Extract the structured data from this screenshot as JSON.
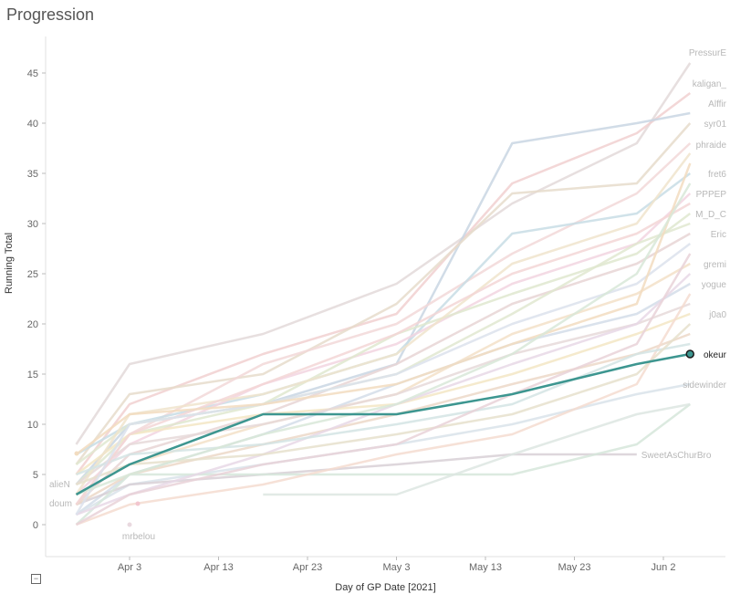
{
  "title": "Progression",
  "chart_data": {
    "type": "line",
    "title": "Progression",
    "xlabel": "Day of GP Date [2021]",
    "ylabel": "Running Total",
    "x_ticks": [
      "Apr 3",
      "Apr 13",
      "Apr 23",
      "May 3",
      "May 13",
      "May 23",
      "Jun 2"
    ],
    "y_ticks": [
      0,
      5,
      10,
      15,
      20,
      25,
      30,
      35,
      40,
      45
    ],
    "ylim": [
      -3,
      47
    ],
    "xlim": [
      "2021-03-27",
      "2021-06-06"
    ],
    "grid": false,
    "highlight": {
      "name": "okeur",
      "color": "#3d9690",
      "points": [
        {
          "x": "2021-03-28",
          "y": 3
        },
        {
          "x": "2021-04-03",
          "y": 6
        },
        {
          "x": "2021-04-18",
          "y": 11
        },
        {
          "x": "2021-05-03",
          "y": 11
        },
        {
          "x": "2021-05-16",
          "y": 13
        },
        {
          "x": "2021-05-30",
          "y": 16
        },
        {
          "x": "2021-06-05",
          "y": 17
        }
      ]
    },
    "series": [
      {
        "name": "PressurE",
        "color": "#e3d9d9",
        "points": [
          {
            "x": "2021-03-28",
            "y": 8
          },
          {
            "x": "2021-04-03",
            "y": 16
          },
          {
            "x": "2021-04-18",
            "y": 19
          },
          {
            "x": "2021-05-03",
            "y": 24
          },
          {
            "x": "2021-05-16",
            "y": 32
          },
          {
            "x": "2021-05-30",
            "y": 38
          },
          {
            "x": "2021-06-05",
            "y": 46
          }
        ]
      },
      {
        "name": "kaligan_",
        "color": "#f1d0d0",
        "points": [
          {
            "x": "2021-03-28",
            "y": 5
          },
          {
            "x": "2021-04-03",
            "y": 12
          },
          {
            "x": "2021-04-18",
            "y": 17
          },
          {
            "x": "2021-05-03",
            "y": 21
          },
          {
            "x": "2021-05-16",
            "y": 34
          },
          {
            "x": "2021-05-30",
            "y": 39
          },
          {
            "x": "2021-06-05",
            "y": 43
          }
        ]
      },
      {
        "name": "Alffir",
        "color": "#c9d6e3",
        "points": [
          {
            "x": "2021-03-28",
            "y": 4
          },
          {
            "x": "2021-04-03",
            "y": 10
          },
          {
            "x": "2021-04-18",
            "y": 12
          },
          {
            "x": "2021-05-03",
            "y": 16
          },
          {
            "x": "2021-05-16",
            "y": 38
          },
          {
            "x": "2021-05-30",
            "y": 40
          },
          {
            "x": "2021-06-05",
            "y": 41
          }
        ]
      },
      {
        "name": "syr01",
        "color": "#e6dccb",
        "points": [
          {
            "x": "2021-03-28",
            "y": 6
          },
          {
            "x": "2021-04-03",
            "y": 13
          },
          {
            "x": "2021-04-18",
            "y": 15
          },
          {
            "x": "2021-05-03",
            "y": 22
          },
          {
            "x": "2021-05-16",
            "y": 33
          },
          {
            "x": "2021-05-30",
            "y": 34
          },
          {
            "x": "2021-06-05",
            "y": 40
          }
        ]
      },
      {
        "name": "phraide",
        "color": "#f2d8d8",
        "points": [
          {
            "x": "2021-03-28",
            "y": 2
          },
          {
            "x": "2021-04-03",
            "y": 9
          },
          {
            "x": "2021-04-18",
            "y": 16
          },
          {
            "x": "2021-05-03",
            "y": 20
          },
          {
            "x": "2021-05-16",
            "y": 27
          },
          {
            "x": "2021-05-30",
            "y": 33
          },
          {
            "x": "2021-06-05",
            "y": 38
          }
        ]
      },
      {
        "name": "fret6",
        "color": "#c8dde5",
        "points": [
          {
            "x": "2021-03-28",
            "y": 7
          },
          {
            "x": "2021-04-03",
            "y": 10
          },
          {
            "x": "2021-04-18",
            "y": 13
          },
          {
            "x": "2021-05-03",
            "y": 17
          },
          {
            "x": "2021-05-16",
            "y": 29
          },
          {
            "x": "2021-05-30",
            "y": 31
          },
          {
            "x": "2021-06-05",
            "y": 35
          }
        ]
      },
      {
        "name": "PPPEP",
        "color": "#f2d5e0",
        "points": [
          {
            "x": "2021-03-28",
            "y": 3
          },
          {
            "x": "2021-04-03",
            "y": 8
          },
          {
            "x": "2021-04-18",
            "y": 14
          },
          {
            "x": "2021-05-03",
            "y": 18
          },
          {
            "x": "2021-05-16",
            "y": 24
          },
          {
            "x": "2021-05-30",
            "y": 28
          },
          {
            "x": "2021-06-05",
            "y": 33
          }
        ]
      },
      {
        "name": "M_D_C",
        "color": "#dfe8cf",
        "points": [
          {
            "x": "2021-03-28",
            "y": 4
          },
          {
            "x": "2021-04-03",
            "y": 9
          },
          {
            "x": "2021-04-18",
            "y": 12
          },
          {
            "x": "2021-05-03",
            "y": 19
          },
          {
            "x": "2021-05-16",
            "y": 23
          },
          {
            "x": "2021-05-30",
            "y": 27
          },
          {
            "x": "2021-06-05",
            "y": 31
          }
        ]
      },
      {
        "name": "Eric",
        "color": "#e8d5d5",
        "points": [
          {
            "x": "2021-03-28",
            "y": 2
          },
          {
            "x": "2021-04-03",
            "y": 7
          },
          {
            "x": "2021-04-18",
            "y": 11
          },
          {
            "x": "2021-05-03",
            "y": 16
          },
          {
            "x": "2021-05-16",
            "y": 22
          },
          {
            "x": "2021-05-30",
            "y": 26
          },
          {
            "x": "2021-06-05",
            "y": 29
          }
        ]
      },
      {
        "name": "gremi",
        "color": "#f3e0c8",
        "points": [
          {
            "x": "2021-03-28",
            "y": 3
          },
          {
            "x": "2021-04-03",
            "y": 6
          },
          {
            "x": "2021-04-18",
            "y": 10
          },
          {
            "x": "2021-05-03",
            "y": 13
          },
          {
            "x": "2021-05-16",
            "y": 19
          },
          {
            "x": "2021-05-30",
            "y": 23
          },
          {
            "x": "2021-06-05",
            "y": 26
          }
        ]
      },
      {
        "name": "yogue",
        "color": "#d4dde9",
        "points": [
          {
            "x": "2021-03-28",
            "y": 1
          },
          {
            "x": "2021-04-03",
            "y": 5
          },
          {
            "x": "2021-04-18",
            "y": 9
          },
          {
            "x": "2021-05-03",
            "y": 14
          },
          {
            "x": "2021-05-16",
            "y": 18
          },
          {
            "x": "2021-05-30",
            "y": 21
          },
          {
            "x": "2021-06-05",
            "y": 24
          }
        ]
      },
      {
        "name": "j0a0",
        "color": "#f3e6c4",
        "points": [
          {
            "x": "2021-03-28",
            "y": 5
          },
          {
            "x": "2021-04-03",
            "y": 9
          },
          {
            "x": "2021-04-18",
            "y": 11
          },
          {
            "x": "2021-05-03",
            "y": 12
          },
          {
            "x": "2021-05-16",
            "y": 15
          },
          {
            "x": "2021-05-30",
            "y": 19
          },
          {
            "x": "2021-06-05",
            "y": 21
          }
        ]
      },
      {
        "name": "sidewinder",
        "color": "#d9e3ea",
        "points": [
          {
            "x": "2021-03-28",
            "y": 1
          },
          {
            "x": "2021-04-03",
            "y": 4
          },
          {
            "x": "2021-04-18",
            "y": 6
          },
          {
            "x": "2021-05-03",
            "y": 8
          },
          {
            "x": "2021-05-16",
            "y": 10
          },
          {
            "x": "2021-05-30",
            "y": 13
          },
          {
            "x": "2021-06-05",
            "y": 14
          }
        ]
      },
      {
        "name": "SweetAsChurBro",
        "color": "#d8d0d6",
        "points": [
          {
            "x": "2021-03-28",
            "y": 2
          },
          {
            "x": "2021-04-03",
            "y": 4
          },
          {
            "x": "2021-04-18",
            "y": 5
          },
          {
            "x": "2021-05-03",
            "y": 6
          },
          {
            "x": "2021-05-16",
            "y": 7
          },
          {
            "x": "2021-05-30",
            "y": 7
          }
        ]
      },
      {
        "name": "alieN",
        "color": "#e6d9d9",
        "points": [
          {
            "x": "2021-03-28",
            "y": 4
          },
          {
            "x": "2021-04-03",
            "y": 8
          },
          {
            "x": "2021-04-18",
            "y": 10
          },
          {
            "x": "2021-05-03",
            "y": 13
          },
          {
            "x": "2021-05-16",
            "y": 17
          },
          {
            "x": "2021-05-30",
            "y": 20
          },
          {
            "x": "2021-06-05",
            "y": 22
          }
        ]
      },
      {
        "name": "doum",
        "color": "#ecd8c8",
        "points": [
          {
            "x": "2021-03-28",
            "y": 2
          },
          {
            "x": "2021-04-03",
            "y": 5
          },
          {
            "x": "2021-04-18",
            "y": 8
          },
          {
            "x": "2021-05-03",
            "y": 11
          },
          {
            "x": "2021-05-16",
            "y": 14
          },
          {
            "x": "2021-05-30",
            "y": 17
          },
          {
            "x": "2021-06-05",
            "y": 19
          }
        ]
      },
      {
        "name": "mrbelou",
        "color": "#e9d9df",
        "points": [
          {
            "x": "2021-04-03",
            "y": 0
          }
        ]
      },
      {
        "name": "",
        "color": "#d6e6da",
        "points": [
          {
            "x": "2021-03-28",
            "y": 0
          },
          {
            "x": "2021-04-03",
            "y": 5
          },
          {
            "x": "2021-04-18",
            "y": 5
          },
          {
            "x": "2021-05-03",
            "y": 5
          },
          {
            "x": "2021-05-16",
            "y": 5
          },
          {
            "x": "2021-05-30",
            "y": 8
          },
          {
            "x": "2021-06-05",
            "y": 12
          }
        ]
      },
      {
        "name": "",
        "color": "#dde6e2",
        "points": [
          {
            "x": "2021-04-18",
            "y": 3
          },
          {
            "x": "2021-05-03",
            "y": 3
          },
          {
            "x": "2021-05-16",
            "y": 7
          },
          {
            "x": "2021-05-30",
            "y": 11
          },
          {
            "x": "2021-06-05",
            "y": 12
          }
        ]
      },
      {
        "name": "",
        "color": "#f4dcd0",
        "points": [
          {
            "x": "2021-03-28",
            "y": 0
          },
          {
            "x": "2021-04-03",
            "y": 2
          },
          {
            "x": "2021-04-18",
            "y": 4
          },
          {
            "x": "2021-05-03",
            "y": 7
          },
          {
            "x": "2021-05-16",
            "y": 9
          },
          {
            "x": "2021-05-30",
            "y": 14
          },
          {
            "x": "2021-06-05",
            "y": 23
          }
        ]
      },
      {
        "name": "",
        "color": "#e0e8d0",
        "points": [
          {
            "x": "2021-03-28",
            "y": 6
          },
          {
            "x": "2021-04-03",
            "y": 10
          },
          {
            "x": "2021-04-18",
            "y": 12
          },
          {
            "x": "2021-05-03",
            "y": 15
          },
          {
            "x": "2021-05-16",
            "y": 21
          },
          {
            "x": "2021-05-30",
            "y": 28
          },
          {
            "x": "2021-06-05",
            "y": 30
          }
        ]
      },
      {
        "name": "",
        "color": "#f0e4cc",
        "points": [
          {
            "x": "2021-03-28",
            "y": 3
          },
          {
            "x": "2021-04-03",
            "y": 11
          },
          {
            "x": "2021-04-18",
            "y": 13
          },
          {
            "x": "2021-05-03",
            "y": 17
          },
          {
            "x": "2021-05-16",
            "y": 26
          },
          {
            "x": "2021-05-30",
            "y": 30
          },
          {
            "x": "2021-06-05",
            "y": 37
          }
        ]
      },
      {
        "name": "",
        "color": "#e8d8e6",
        "points": [
          {
            "x": "2021-03-28",
            "y": 1
          },
          {
            "x": "2021-04-03",
            "y": 3
          },
          {
            "x": "2021-04-18",
            "y": 7
          },
          {
            "x": "2021-05-03",
            "y": 12
          },
          {
            "x": "2021-05-16",
            "y": 16
          },
          {
            "x": "2021-05-30",
            "y": 20
          },
          {
            "x": "2021-06-05",
            "y": 25
          }
        ]
      },
      {
        "name": "",
        "color": "#d4e4e4",
        "points": [
          {
            "x": "2021-03-28",
            "y": 5
          },
          {
            "x": "2021-04-03",
            "y": 7
          },
          {
            "x": "2021-04-18",
            "y": 8
          },
          {
            "x": "2021-05-03",
            "y": 10
          },
          {
            "x": "2021-05-16",
            "y": 12
          },
          {
            "x": "2021-05-30",
            "y": 17
          },
          {
            "x": "2021-06-05",
            "y": 18
          }
        ]
      },
      {
        "name": "",
        "color": "#f3d6d6",
        "points": [
          {
            "x": "2021-03-28",
            "y": 2
          },
          {
            "x": "2021-04-03",
            "y": 9
          },
          {
            "x": "2021-04-18",
            "y": 14
          },
          {
            "x": "2021-05-03",
            "y": 19
          },
          {
            "x": "2021-05-16",
            "y": 25
          },
          {
            "x": "2021-05-30",
            "y": 29
          },
          {
            "x": "2021-06-05",
            "y": 32
          }
        ]
      },
      {
        "name": "",
        "color": "#e6e0cc",
        "points": [
          {
            "x": "2021-03-28",
            "y": 4
          },
          {
            "x": "2021-04-03",
            "y": 6
          },
          {
            "x": "2021-04-18",
            "y": 7
          },
          {
            "x": "2021-05-03",
            "y": 9
          },
          {
            "x": "2021-05-16",
            "y": 11
          },
          {
            "x": "2021-05-30",
            "y": 15
          },
          {
            "x": "2021-06-05",
            "y": 20
          }
        ]
      },
      {
        "name": "",
        "color": "#dce2ec",
        "points": [
          {
            "x": "2021-03-28",
            "y": 1
          },
          {
            "x": "2021-04-03",
            "y": 10
          },
          {
            "x": "2021-04-18",
            "y": 12
          },
          {
            "x": "2021-05-03",
            "y": 15
          },
          {
            "x": "2021-05-16",
            "y": 20
          },
          {
            "x": "2021-05-30",
            "y": 24
          },
          {
            "x": "2021-06-05",
            "y": 28
          }
        ]
      },
      {
        "name": "",
        "color": "#f2dcc0",
        "points": [
          {
            "x": "2021-03-28",
            "y": 7
          },
          {
            "x": "2021-04-03",
            "y": 11
          },
          {
            "x": "2021-04-18",
            "y": 12
          },
          {
            "x": "2021-05-03",
            "y": 14
          },
          {
            "x": "2021-05-16",
            "y": 18
          },
          {
            "x": "2021-05-30",
            "y": 22
          },
          {
            "x": "2021-06-05",
            "y": 36
          }
        ]
      },
      {
        "name": "",
        "color": "#e9d2d8",
        "points": [
          {
            "x": "2021-03-28",
            "y": 0
          },
          {
            "x": "2021-04-03",
            "y": 3
          },
          {
            "x": "2021-04-18",
            "y": 6
          },
          {
            "x": "2021-05-03",
            "y": 8
          },
          {
            "x": "2021-05-16",
            "y": 13
          },
          {
            "x": "2021-05-30",
            "y": 18
          },
          {
            "x": "2021-06-05",
            "y": 27
          }
        ]
      },
      {
        "name": "",
        "color": "#d8e8d8",
        "points": [
          {
            "x": "2021-03-28",
            "y": 3
          },
          {
            "x": "2021-04-03",
            "y": 5
          },
          {
            "x": "2021-04-18",
            "y": 9
          },
          {
            "x": "2021-05-03",
            "y": 12
          },
          {
            "x": "2021-05-16",
            "y": 17
          },
          {
            "x": "2021-05-30",
            "y": 25
          },
          {
            "x": "2021-06-05",
            "y": 34
          }
        ]
      }
    ]
  }
}
